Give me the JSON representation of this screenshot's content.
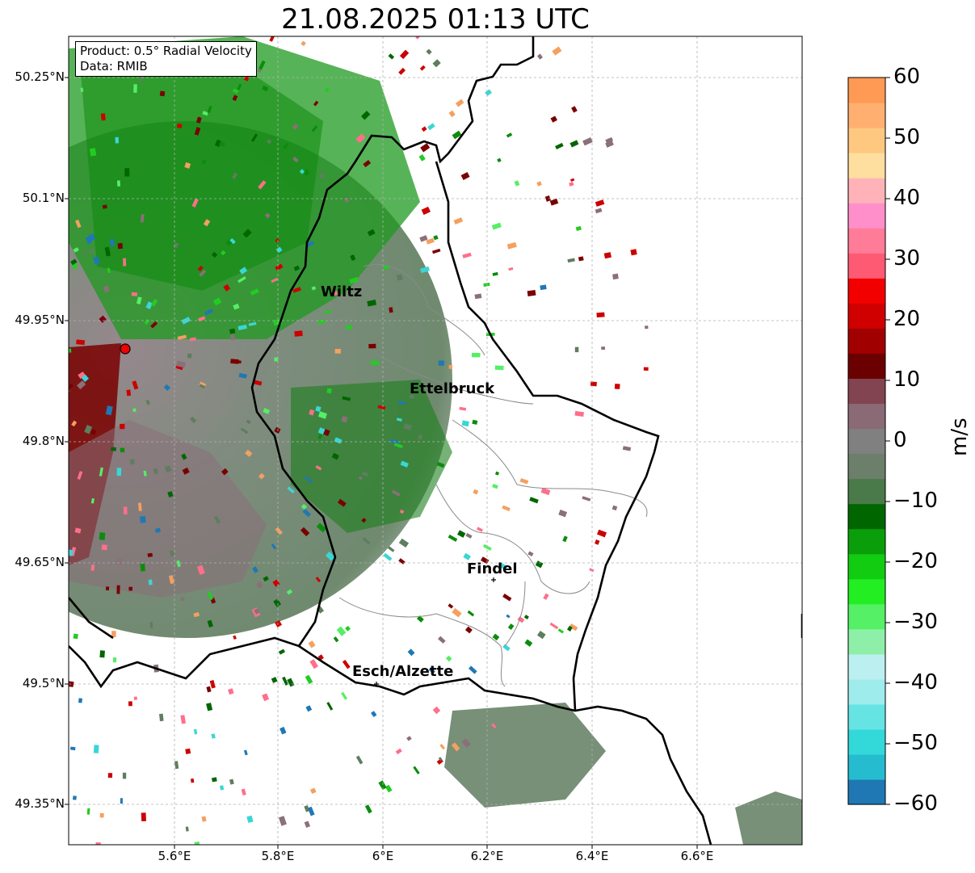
{
  "title": "21.08.2025 01:13 UTC",
  "info": {
    "product": "Product: 0.5° Radial Velocity",
    "source": "Data: RMIB"
  },
  "colorbar": {
    "unit": "m/s",
    "ticks": [
      "60",
      "50",
      "40",
      "30",
      "20",
      "10",
      "0",
      "−10",
      "−20",
      "−30",
      "−40",
      "−50",
      "−60"
    ],
    "range": [
      -60,
      60
    ],
    "colors": [
      "#1f78b4",
      "#26bcd0",
      "#33d9d9",
      "#66e4e4",
      "#9eecec",
      "#bcefef",
      "#8ef0a8",
      "#55f065",
      "#22ee22",
      "#11cc11",
      "#0a9f0a",
      "#006600",
      "#4a7a4a",
      "#6b7f6b",
      "#808080",
      "#8a6a74",
      "#834451",
      "#6b0000",
      "#a00000",
      "#d00000",
      "#f20000",
      "#ff5a73",
      "#ff7c99",
      "#ff8fca",
      "#ffb3b8",
      "#ffdfa0",
      "#ffc880",
      "#ffb070",
      "#ff9a55"
    ]
  },
  "lat_labels": [
    "50.25°N",
    "50.1°N",
    "49.95°N",
    "49.8°N",
    "49.65°N",
    "49.5°N",
    "49.35°N"
  ],
  "lon_labels": [
    "5.6°E",
    "5.8°E",
    "6°E",
    "6.2°E",
    "6.4°E",
    "6.6°E"
  ],
  "cities": [
    {
      "name": "Wiltz"
    },
    {
      "name": "Ettelbruck"
    },
    {
      "name": "Findel"
    },
    {
      "name": "Esch/Alzette"
    }
  ]
}
